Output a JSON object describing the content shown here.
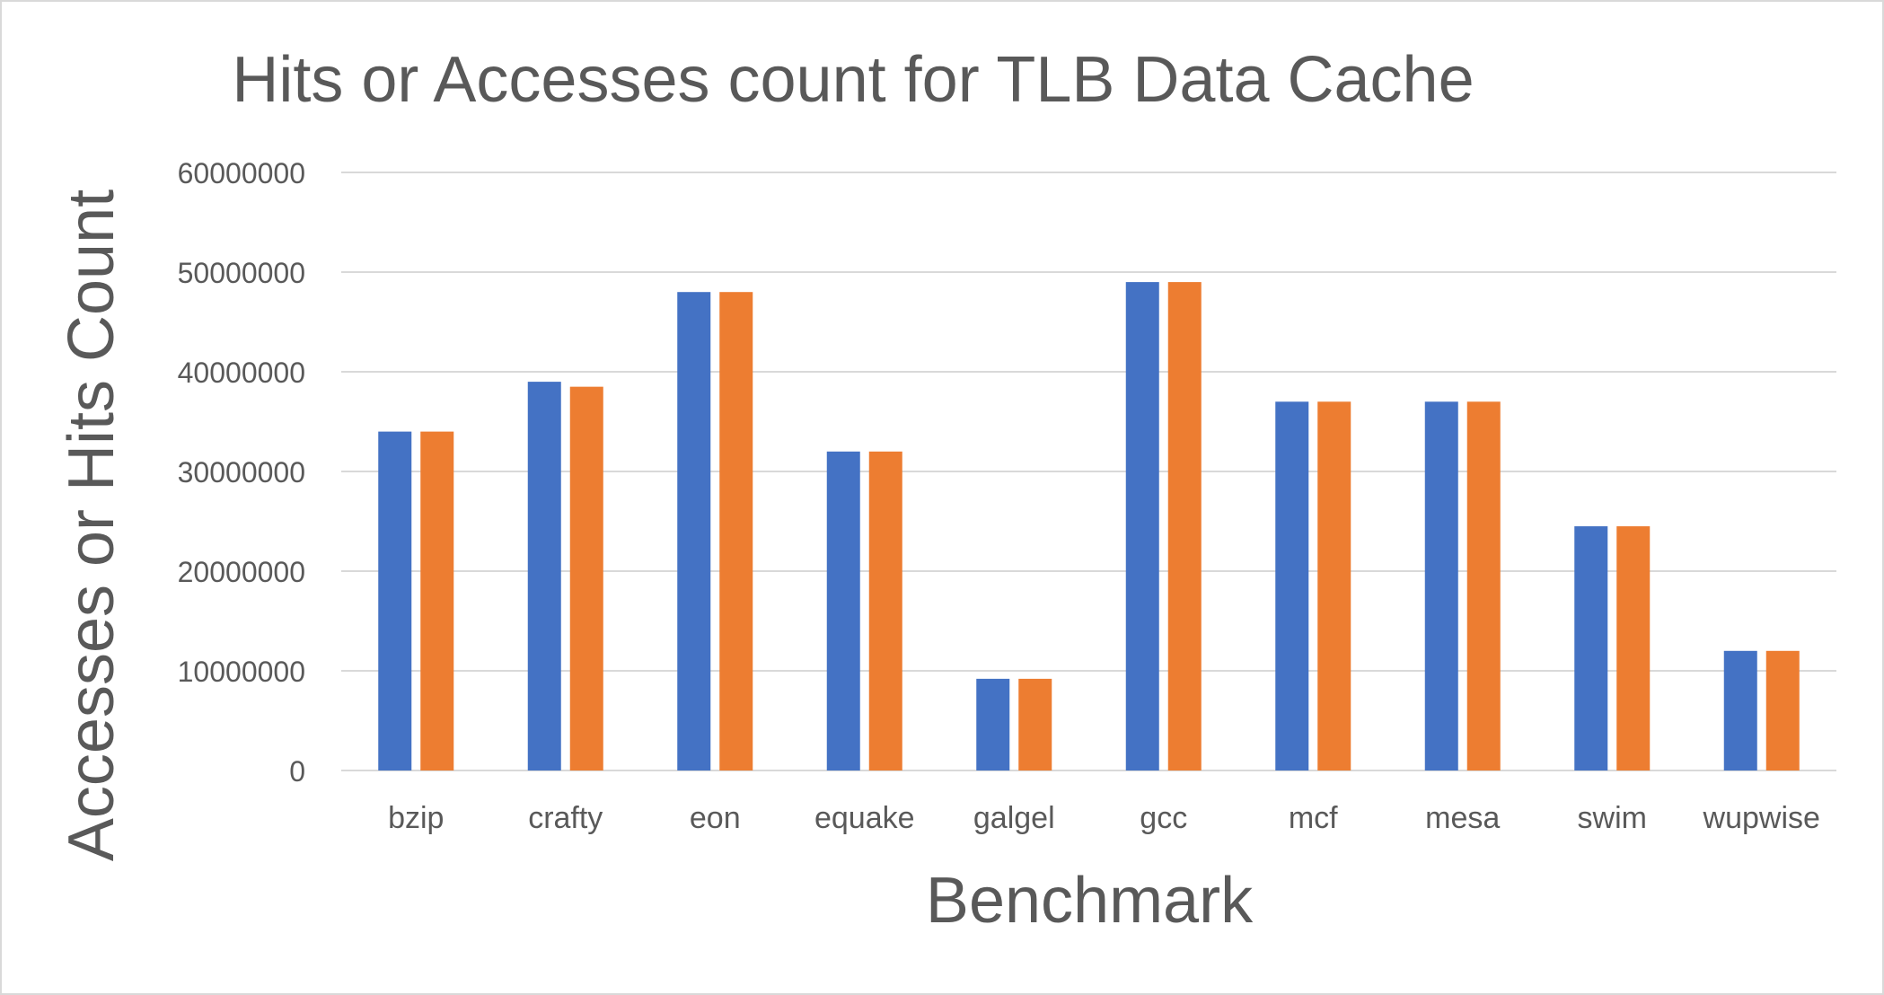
{
  "chart_data": {
    "type": "bar",
    "title": "Hits or Accesses count for TLB  Data Cache",
    "xlabel": "Benchmark",
    "ylabel": "Accesses or Hits Count",
    "categories": [
      "bzip",
      "crafty",
      "eon",
      "equake",
      "galgel",
      "gcc",
      "mcf",
      "mesa",
      "swim",
      "wupwise"
    ],
    "series": [
      {
        "color": "#4472C4",
        "values": [
          34000000,
          39000000,
          48000000,
          32000000,
          9200000,
          49000000,
          37000000,
          37000000,
          24500000,
          12000000
        ]
      },
      {
        "color": "#ED7D31",
        "values": [
          34000000,
          38500000,
          48000000,
          32000000,
          9200000,
          49000000,
          37000000,
          37000000,
          24500000,
          12000000
        ]
      }
    ],
    "ylim": [
      0,
      60000000
    ],
    "yticks": [
      "0",
      "10000000",
      "20000000",
      "30000000",
      "40000000",
      "50000000",
      "60000000"
    ],
    "grid": true,
    "legend": "none"
  }
}
